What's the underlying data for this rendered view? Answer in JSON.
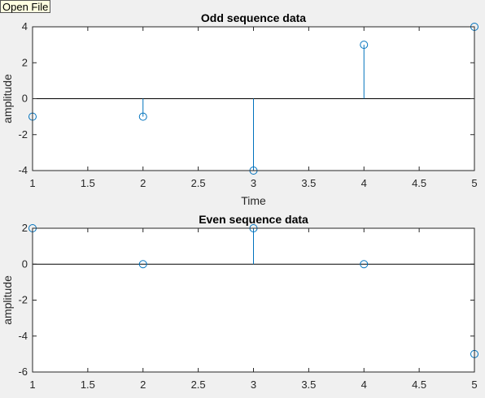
{
  "toolbar": {
    "open_file_label": "Open File"
  },
  "colors": {
    "stem": "#0072bd",
    "axis": "#262626",
    "plot_bg": "#ffffff",
    "figure_bg": "#f0f0f0"
  },
  "chart_data": [
    {
      "type": "stem",
      "title": "Odd sequence data",
      "xlabel": "Time",
      "ylabel": "amplitude",
      "xlim": [
        1,
        5
      ],
      "ylim": [
        -4,
        4
      ],
      "xticks": [
        "1",
        "1.5",
        "2",
        "2.5",
        "3",
        "3.5",
        "4",
        "4.5",
        "5"
      ],
      "yticks": [
        "-4",
        "-2",
        "0",
        "2",
        "4"
      ],
      "x": [
        1,
        2,
        3,
        4,
        5
      ],
      "y": [
        -1,
        -1,
        -4,
        3,
        4
      ]
    },
    {
      "type": "stem",
      "title": "Even sequence data",
      "xlabel": "",
      "ylabel": "amplitude",
      "xlim": [
        1,
        5
      ],
      "ylim": [
        -6,
        2
      ],
      "xticks": [
        "1",
        "1.5",
        "2",
        "2.5",
        "3",
        "3.5",
        "4",
        "4.5",
        "5"
      ],
      "yticks": [
        "-6",
        "-4",
        "-2",
        "0",
        "2"
      ],
      "x": [
        1,
        2,
        3,
        4,
        5
      ],
      "y": [
        2,
        0,
        2,
        0,
        -5
      ]
    }
  ]
}
